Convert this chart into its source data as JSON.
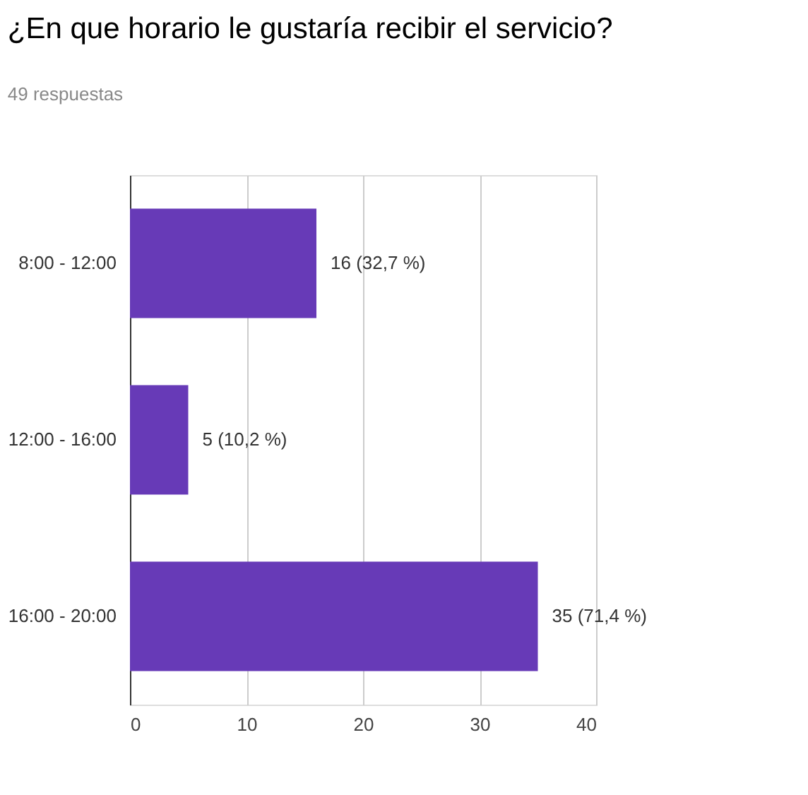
{
  "chart_data": {
    "type": "bar",
    "orientation": "horizontal",
    "title": "¿En que horario le gustaría recibir el servicio?",
    "subtitle": "49 respuestas",
    "categories": [
      "8:00 - 12:00",
      "12:00 - 16:00",
      "16:00 - 20:00"
    ],
    "values": [
      16,
      5,
      35
    ],
    "value_labels": [
      "16 (32,7 %)",
      "5 (10,2 %)",
      "35 (71,4 %)"
    ],
    "color": "#673ab7",
    "xlim": [
      0,
      40
    ],
    "xticks": [
      0,
      10,
      20,
      30,
      40
    ],
    "grid": "x"
  }
}
